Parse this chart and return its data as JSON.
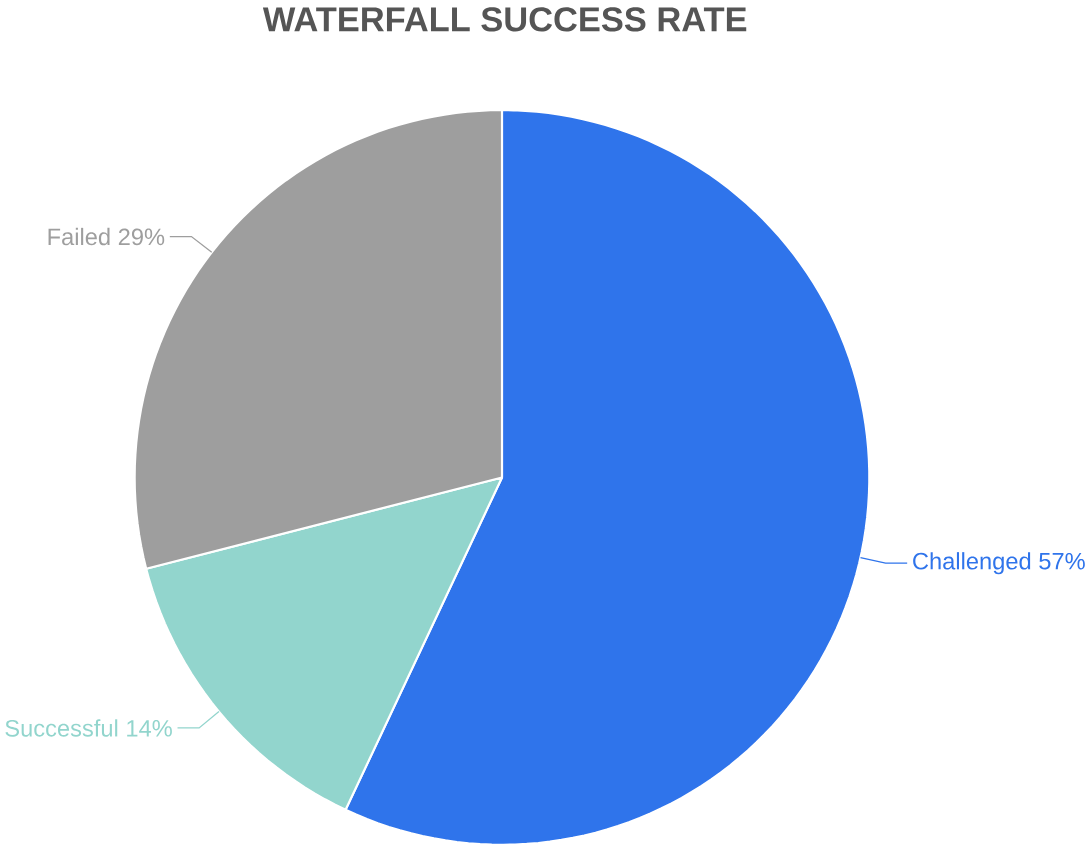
{
  "chart_data": {
    "type": "pie",
    "title": "WATERFALL SUCCESS RATE",
    "categories": [
      "Challenged",
      "Successful",
      "Failed"
    ],
    "values": [
      57,
      14,
      29
    ],
    "value_labels": [
      "57%",
      "14%",
      "29%"
    ],
    "colors": [
      "#2f74eb",
      "#92d5cd",
      "#9e9e9e"
    ]
  }
}
